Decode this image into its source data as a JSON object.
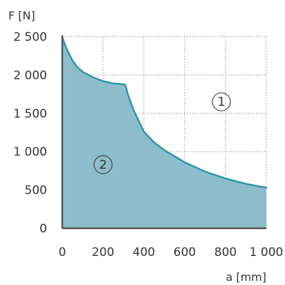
{
  "chart_data": {
    "type": "area",
    "xlabel": "a [mm]",
    "ylabel": "F [N]",
    "xlim": [
      0,
      1000
    ],
    "ylim": [
      0,
      2500
    ],
    "grid": true,
    "x_ticks": [
      0,
      200,
      400,
      600,
      800,
      1000
    ],
    "x_tick_labels": [
      "0",
      "200",
      "400",
      "600",
      "800",
      "1 000"
    ],
    "y_ticks": [
      0,
      500,
      1000,
      1500,
      2000,
      2500
    ],
    "y_tick_labels": [
      "0",
      "500",
      "1 000",
      "1 500",
      "2 000",
      "2 500"
    ],
    "colors": {
      "fill": "#8dbdca",
      "line": "#2a96a8",
      "axis": "#555555",
      "grid": "#888888"
    },
    "series": [
      {
        "x": [
          0,
          10,
          25,
          50,
          75,
          100,
          150,
          200,
          250,
          300,
          310,
          320,
          350,
          400,
          450,
          500,
          600,
          700,
          800,
          900,
          1000
        ],
        "values": [
          2500,
          2420,
          2320,
          2190,
          2100,
          2040,
          1970,
          1920,
          1890,
          1880,
          1870,
          1760,
          1540,
          1260,
          1120,
          1020,
          860,
          740,
          650,
          580,
          530
        ]
      }
    ],
    "annotations": [
      {
        "text": "1",
        "x": 780,
        "y": 1650
      },
      {
        "text": "2",
        "x": 200,
        "y": 830
      }
    ]
  }
}
